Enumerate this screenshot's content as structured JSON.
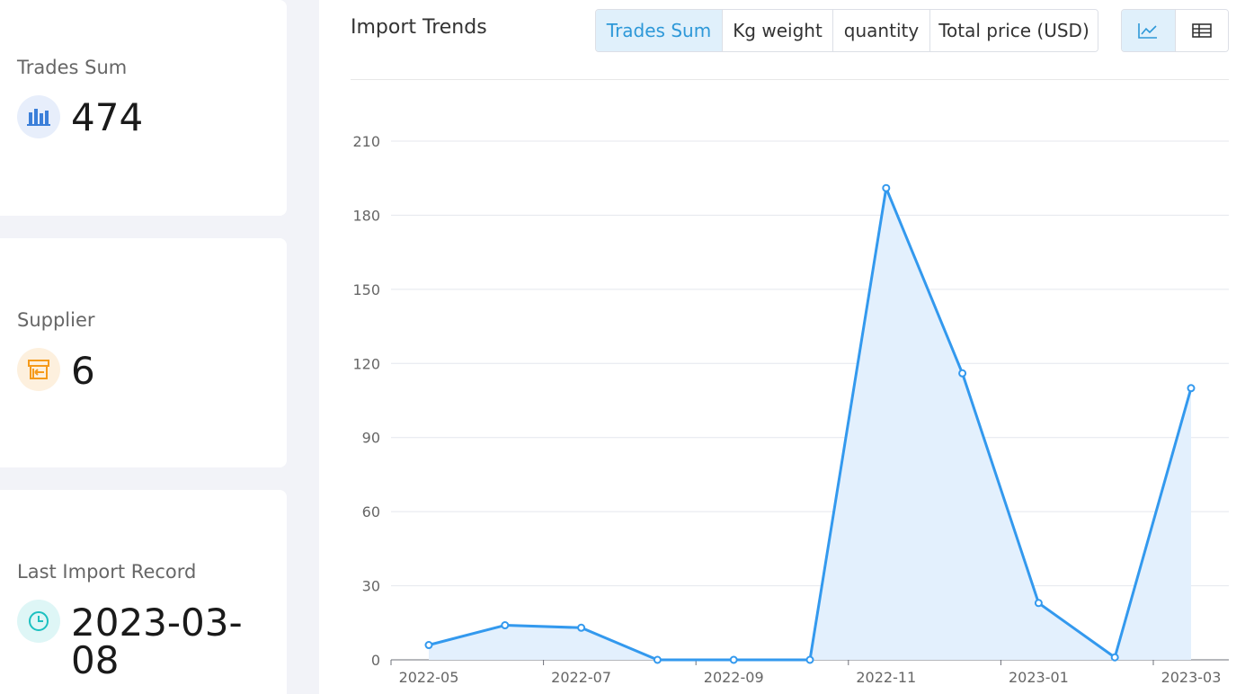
{
  "summary": {
    "trades": {
      "label": "Trades Sum",
      "value": "474",
      "icon": "bar-chart-icon",
      "color": "#3b7fd9"
    },
    "supplier": {
      "label": "Supplier",
      "value": "6",
      "icon": "store-icon",
      "color": "#f59a1b"
    },
    "last_record": {
      "label": "Last Import Record",
      "value": "2023-03-08",
      "icon": "clock-icon",
      "color": "#1cc0c0"
    }
  },
  "panel": {
    "title": "Import Trends",
    "metric_tabs": [
      "Trades Sum",
      "Kg weight",
      "quantity",
      "Total price (USD)"
    ],
    "active_tab": "Trades Sum",
    "view_icons": [
      "line-chart-icon",
      "table-icon"
    ],
    "active_view": "line-chart-icon"
  },
  "chart_data": {
    "type": "area",
    "x": [
      "2022-05",
      "2022-06",
      "2022-07",
      "2022-08",
      "2022-09",
      "2022-10",
      "2022-11",
      "2022-12",
      "2023-01",
      "2023-02",
      "2023-03"
    ],
    "x_tick_labels": [
      "2022-05",
      "2022-07",
      "2022-09",
      "2022-11",
      "2023-01",
      "2023-03"
    ],
    "series": [
      {
        "values": [
          6,
          14,
          13,
          0,
          0,
          0,
          191,
          116,
          23,
          1,
          110
        ]
      }
    ],
    "ylim": [
      0,
      210
    ],
    "yticks": [
      0,
      30,
      60,
      90,
      120,
      150,
      180,
      210
    ],
    "grid": true,
    "line_color": "#3399ee",
    "fill_color": "#e3f0fd"
  }
}
